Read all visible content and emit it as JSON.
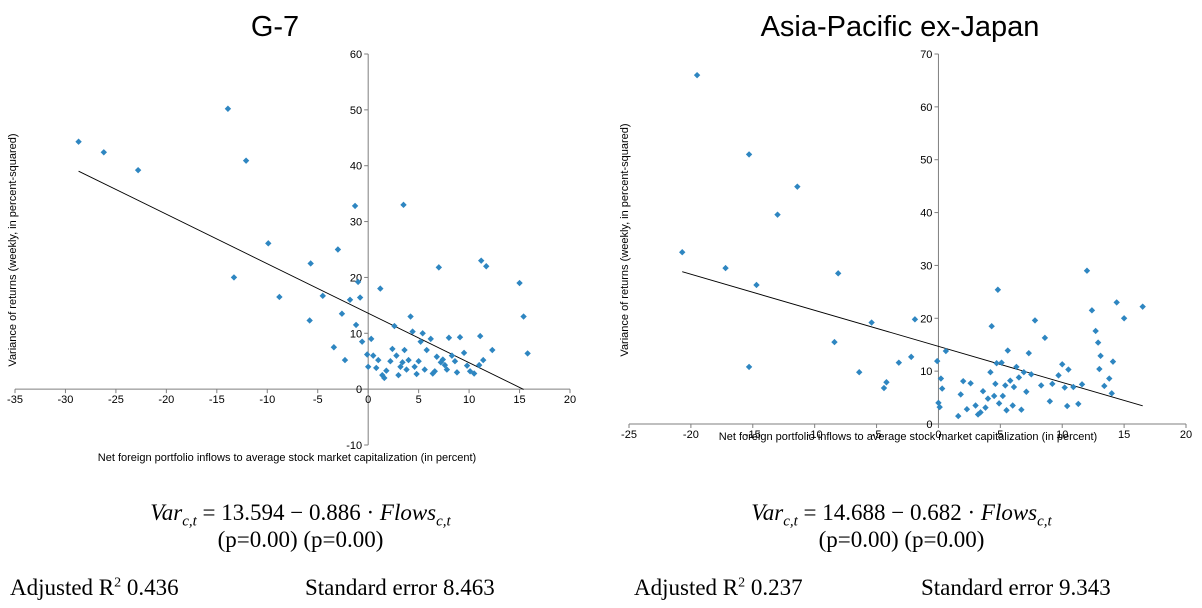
{
  "chart_data": [
    {
      "type": "scatter",
      "title": "G-7",
      "xlabel": "Net foreign portfolio inflows to average stock market capitalization (in percent)",
      "ylabel": "Variance of returns (weekly, in percent-squared)",
      "xlim": [
        -35,
        20
      ],
      "ylim": [
        -10,
        60
      ],
      "xticks": [
        "-35",
        "-30",
        "-25",
        "-20",
        "-15",
        "-10",
        "-5",
        "0",
        "5",
        "10",
        "15",
        "20"
      ],
      "yticks": [
        "-10",
        "0",
        "10",
        "20",
        "30",
        "40",
        "50",
        "60"
      ],
      "grid": false,
      "marker_color": "#2e86c1",
      "trendline": {
        "intercept": 13.594,
        "slope": -0.886,
        "x_range": [
          -28.7,
          15.4
        ]
      },
      "points": [
        [
          -28.7,
          44.3
        ],
        [
          -26.2,
          42.4
        ],
        [
          -22.8,
          39.2
        ],
        [
          -13.9,
          50.2
        ],
        [
          -12.1,
          40.9
        ],
        [
          -13.3,
          20.0
        ],
        [
          -9.9,
          26.1
        ],
        [
          -8.8,
          16.5
        ],
        [
          -5.8,
          12.3
        ],
        [
          -5.7,
          22.5
        ],
        [
          -4.5,
          16.7
        ],
        [
          -3.4,
          7.5
        ],
        [
          -3.0,
          25.0
        ],
        [
          -2.6,
          13.5
        ],
        [
          -2.3,
          5.2
        ],
        [
          -1.8,
          16.0
        ],
        [
          -1.3,
          32.8
        ],
        [
          -1.2,
          11.5
        ],
        [
          -1.0,
          19.2
        ],
        [
          -0.8,
          16.4
        ],
        [
          -0.6,
          8.5
        ],
        [
          -0.1,
          6.2
        ],
        [
          0.0,
          4.0
        ],
        [
          0.3,
          9.0
        ],
        [
          0.5,
          6.0
        ],
        [
          0.8,
          3.8
        ],
        [
          1.0,
          5.2
        ],
        [
          1.2,
          18.0
        ],
        [
          1.4,
          2.5
        ],
        [
          1.6,
          2.0
        ],
        [
          1.8,
          3.3
        ],
        [
          2.2,
          5.0
        ],
        [
          2.4,
          7.2
        ],
        [
          2.6,
          11.3
        ],
        [
          2.8,
          6.0
        ],
        [
          3.0,
          2.5
        ],
        [
          3.2,
          4.0
        ],
        [
          3.4,
          4.8
        ],
        [
          3.5,
          33.0
        ],
        [
          3.6,
          7.0
        ],
        [
          3.8,
          3.5
        ],
        [
          4.0,
          5.2
        ],
        [
          4.2,
          13.0
        ],
        [
          4.4,
          10.3
        ],
        [
          4.6,
          4.0
        ],
        [
          4.8,
          2.7
        ],
        [
          5.0,
          5.0
        ],
        [
          5.2,
          8.5
        ],
        [
          5.4,
          10.0
        ],
        [
          5.6,
          3.5
        ],
        [
          5.8,
          7.0
        ],
        [
          6.2,
          9.0
        ],
        [
          6.4,
          2.8
        ],
        [
          6.6,
          3.2
        ],
        [
          6.8,
          5.8
        ],
        [
          7.0,
          21.8
        ],
        [
          7.2,
          4.8
        ],
        [
          7.4,
          5.3
        ],
        [
          7.6,
          4.3
        ],
        [
          7.8,
          3.5
        ],
        [
          8.0,
          9.2
        ],
        [
          8.3,
          6.0
        ],
        [
          8.6,
          5.0
        ],
        [
          8.8,
          3.0
        ],
        [
          9.1,
          9.3
        ],
        [
          9.5,
          6.5
        ],
        [
          9.8,
          4.2
        ],
        [
          10.1,
          3.2
        ],
        [
          10.5,
          2.8
        ],
        [
          11.0,
          4.3
        ],
        [
          11.1,
          9.5
        ],
        [
          11.2,
          23.0
        ],
        [
          11.4,
          5.2
        ],
        [
          11.7,
          22.0
        ],
        [
          12.3,
          7.0
        ],
        [
          15.0,
          19.0
        ],
        [
          15.4,
          13.0
        ],
        [
          15.8,
          6.4
        ]
      ],
      "equation": {
        "main": "Var",
        "main_sub": "c,t",
        "rest": " = 13.594 − 0.886 · ",
        "flows": "Flows",
        "flows_sub": "c,t",
        "pvalues": "(p=0.00) (p=0.00)"
      },
      "stats": {
        "r2_label": "Adjusted R",
        "r2_sup": "2",
        "r2_value": " 0.436",
        "se": "Standard error 8.463"
      }
    },
    {
      "type": "scatter",
      "title": "Asia-Pacific ex-Japan",
      "xlabel": "Net foreign portfolio inflows to average stock market capitalization (in percent)",
      "ylabel": "Variance of returns (weekly, in percent-squared)",
      "xlim": [
        -25,
        20
      ],
      "ylim": [
        0,
        70
      ],
      "xticks": [
        "-25",
        "-20",
        "-15",
        "-10",
        "-5",
        "0",
        "5",
        "10",
        "15",
        "20"
      ],
      "yticks": [
        "0",
        "10",
        "20",
        "30",
        "40",
        "50",
        "60",
        "70"
      ],
      "grid": false,
      "marker_color": "#2e86c1",
      "trendline": {
        "intercept": 14.688,
        "slope": -0.682,
        "x_range": [
          -20.7,
          16.5
        ]
      },
      "points": [
        [
          -19.5,
          66.0
        ],
        [
          -20.7,
          32.5
        ],
        [
          -17.2,
          29.5
        ],
        [
          -15.3,
          51.0
        ],
        [
          -15.3,
          10.8
        ],
        [
          -14.7,
          26.3
        ],
        [
          -13.0,
          39.6
        ],
        [
          -11.4,
          44.9
        ],
        [
          -8.1,
          28.5
        ],
        [
          -8.4,
          15.5
        ],
        [
          -6.4,
          9.8
        ],
        [
          -5.4,
          19.2
        ],
        [
          -4.4,
          6.8
        ],
        [
          -4.2,
          7.9
        ],
        [
          -3.2,
          11.6
        ],
        [
          -2.2,
          12.7
        ],
        [
          -1.9,
          19.8
        ],
        [
          -0.1,
          11.9
        ],
        [
          0.0,
          4.0
        ],
        [
          0.1,
          3.2
        ],
        [
          0.2,
          8.6
        ],
        [
          0.3,
          6.7
        ],
        [
          0.6,
          13.8
        ],
        [
          1.6,
          1.5
        ],
        [
          1.8,
          5.6
        ],
        [
          2.0,
          8.1
        ],
        [
          2.3,
          2.8
        ],
        [
          2.6,
          7.7
        ],
        [
          3.0,
          3.5
        ],
        [
          3.2,
          1.8
        ],
        [
          3.4,
          2.2
        ],
        [
          3.6,
          6.2
        ],
        [
          3.8,
          3.1
        ],
        [
          4.0,
          4.8
        ],
        [
          4.2,
          9.8
        ],
        [
          4.3,
          18.5
        ],
        [
          4.5,
          5.3
        ],
        [
          4.6,
          7.6
        ],
        [
          4.7,
          11.5
        ],
        [
          4.8,
          25.4
        ],
        [
          4.9,
          3.9
        ],
        [
          5.1,
          11.6
        ],
        [
          5.2,
          5.3
        ],
        [
          5.4,
          7.3
        ],
        [
          5.5,
          2.6
        ],
        [
          5.6,
          13.9
        ],
        [
          5.8,
          8.2
        ],
        [
          6.0,
          3.5
        ],
        [
          6.1,
          7.0
        ],
        [
          6.3,
          10.8
        ],
        [
          6.5,
          8.8
        ],
        [
          6.7,
          2.7
        ],
        [
          6.9,
          9.8
        ],
        [
          7.1,
          6.1
        ],
        [
          7.3,
          13.4
        ],
        [
          7.5,
          9.4
        ],
        [
          7.8,
          19.6
        ],
        [
          8.3,
          7.3
        ],
        [
          8.6,
          16.3
        ],
        [
          9.0,
          4.3
        ],
        [
          9.2,
          7.6
        ],
        [
          9.7,
          9.2
        ],
        [
          10.0,
          11.3
        ],
        [
          10.2,
          6.9
        ],
        [
          10.4,
          3.4
        ],
        [
          10.9,
          7.0
        ],
        [
          11.3,
          3.8
        ],
        [
          11.6,
          7.5
        ],
        [
          12.0,
          29.0
        ],
        [
          12.4,
          21.5
        ],
        [
          12.9,
          15.4
        ],
        [
          13.0,
          10.4
        ],
        [
          13.4,
          7.2
        ],
        [
          13.8,
          8.6
        ],
        [
          14.1,
          11.8
        ],
        [
          14.4,
          23.0
        ],
        [
          15.0,
          20.0
        ],
        [
          16.5,
          22.2
        ],
        [
          12.7,
          17.6
        ],
        [
          13.1,
          12.9
        ],
        [
          10.5,
          10.3
        ],
        [
          14.0,
          5.8
        ]
      ],
      "equation": {
        "main": "Var",
        "main_sub": "c,t",
        "rest": " = 14.688 − 0.682 · ",
        "flows": "Flows",
        "flows_sub": "c,t",
        "pvalues": "(p=0.00) (p=0.00)"
      },
      "stats": {
        "r2_label": "Adjusted R",
        "r2_sup": "2",
        "r2_value": " 0.237",
        "se": "Standard error 9.343"
      }
    }
  ]
}
